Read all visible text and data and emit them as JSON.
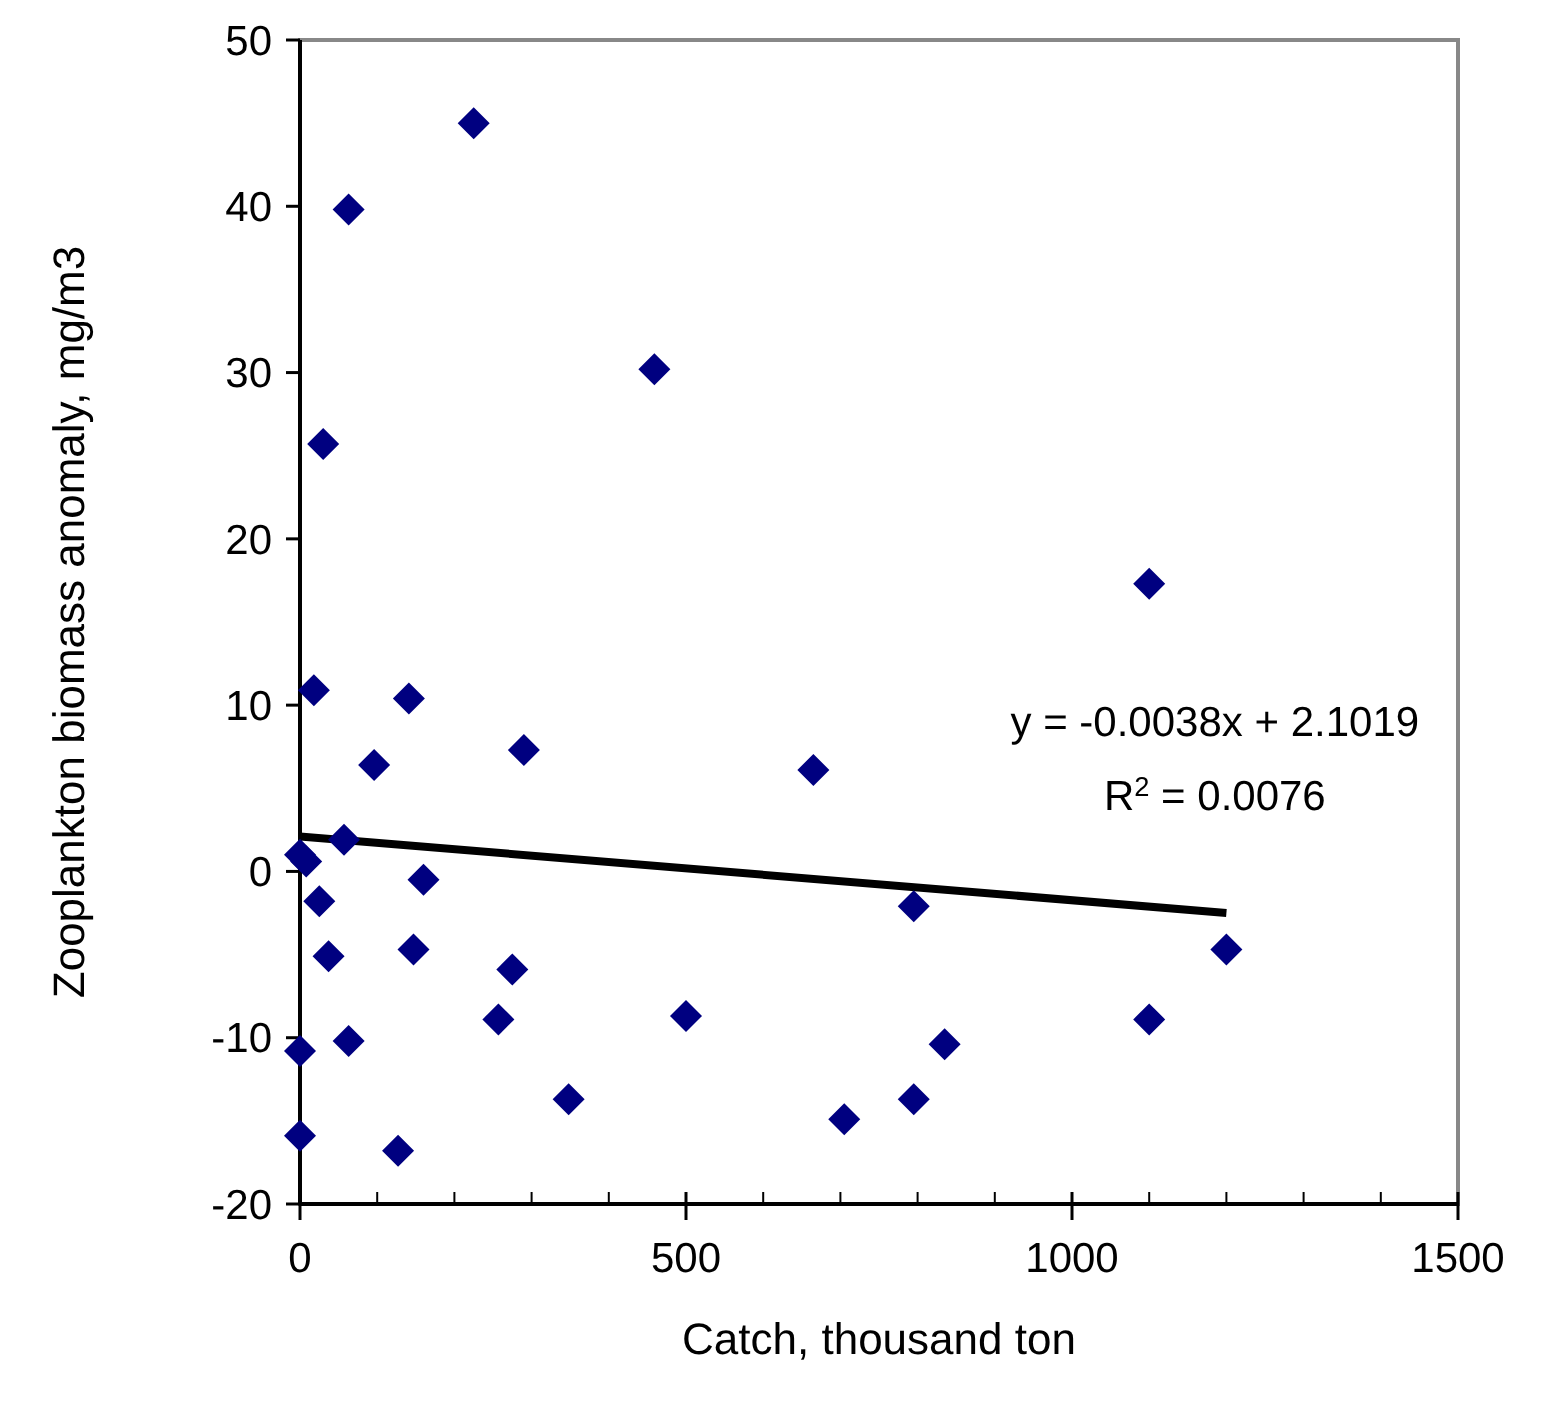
{
  "chart_data": {
    "type": "scatter",
    "xlabel": "Catch, thousand ton",
    "ylabel": "Zooplankton biomass anomaly, mg/m3",
    "xlim": [
      0,
      1500
    ],
    "xticks": [
      0,
      500,
      1000,
      1500
    ],
    "ylim": [
      -20,
      50
    ],
    "yticks": [
      -20,
      -10,
      0,
      10,
      20,
      30,
      40,
      50
    ],
    "grid": false,
    "annotations": [
      "y = -0.0038x + 2.1019",
      "R$^{2}$ = 0.0076"
    ],
    "series": [
      {
        "marker": "diamond",
        "color": "#000080",
        "x": [
          225,
          63,
          30,
          459,
          1100,
          18,
          141,
          96,
          290,
          665,
          57,
          0,
          8,
          160,
          25,
          37,
          147,
          275,
          257,
          500,
          0,
          63,
          348,
          705,
          0,
          127,
          795,
          1200,
          835,
          1100,
          795
        ],
        "values": [
          45.0,
          39.8,
          25.7,
          30.2,
          17.3,
          10.9,
          10.4,
          6.4,
          7.3,
          6.1,
          1.9,
          1.0,
          0.6,
          -0.5,
          -1.8,
          -5.1,
          -4.7,
          -5.9,
          -8.9,
          -8.7,
          -10.8,
          -10.2,
          -13.7,
          -14.9,
          -15.9,
          -16.8,
          -2.1,
          -4.7,
          -10.4,
          -8.9,
          -13.7
        ]
      },
      {
        "type": "line",
        "color": "#000000",
        "x": [
          0,
          1200
        ],
        "values": [
          2.1,
          -2.5
        ]
      }
    ]
  }
}
